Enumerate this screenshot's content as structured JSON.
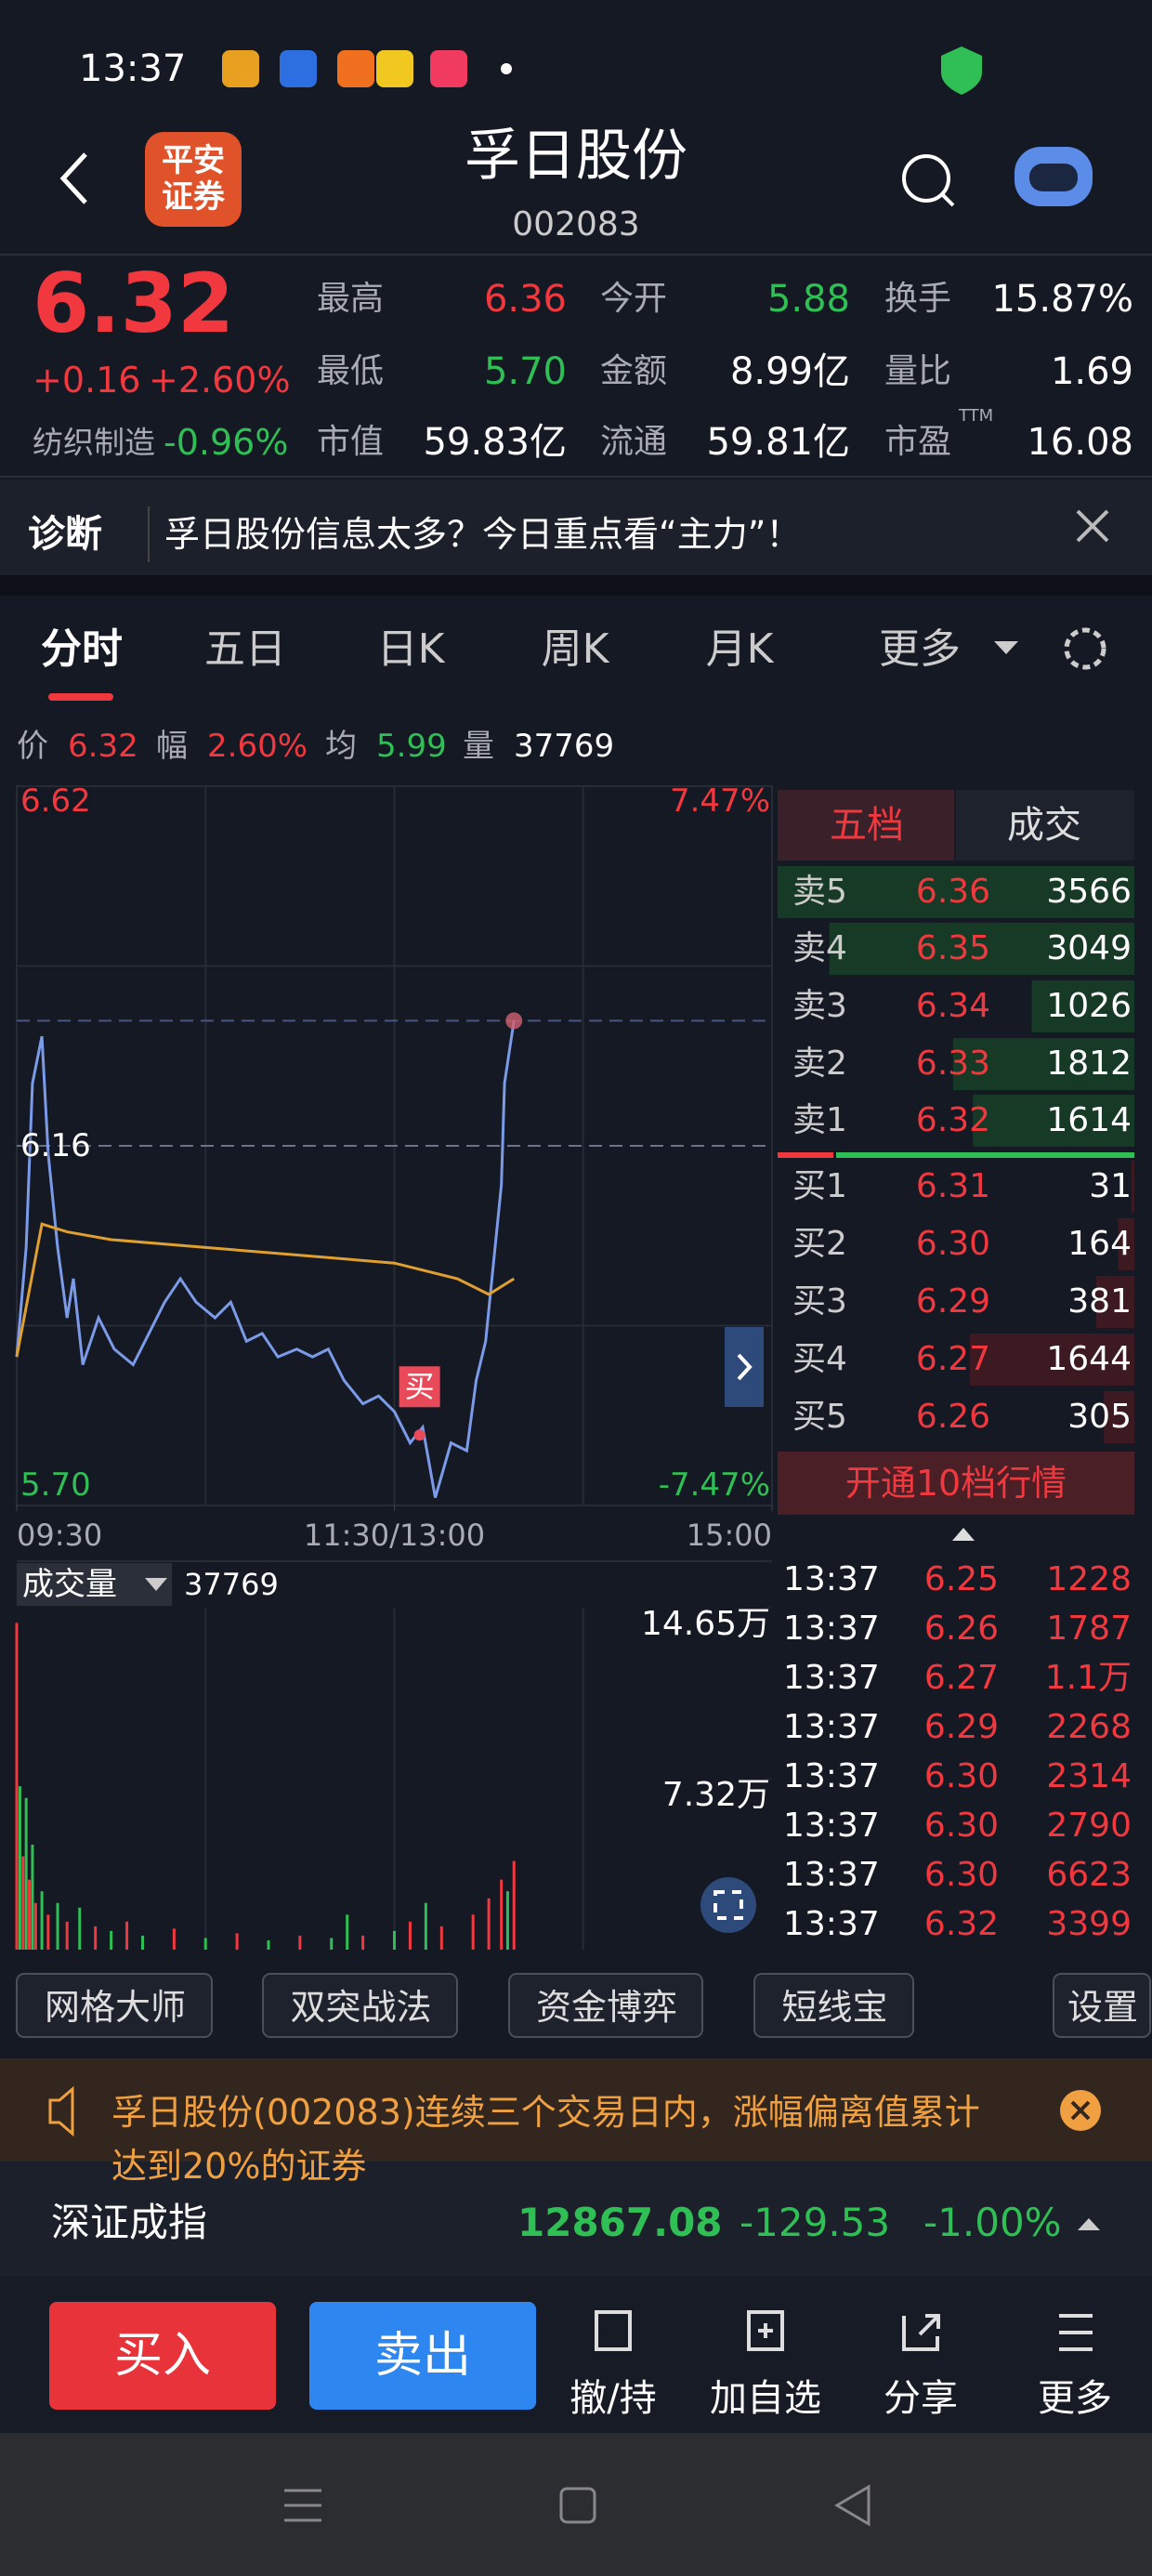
{
  "status_bar": {
    "time": "13:37"
  },
  "header": {
    "broker_logo": "平安证券",
    "title": "孚日股份",
    "code": "002083"
  },
  "quote": {
    "price": "6.32",
    "change": "+0.16",
    "change_pct": "+2.60%",
    "sector": "纺织制造",
    "sector_pct": "-0.96%",
    "stats": [
      {
        "label": "最高",
        "value": "6.36",
        "color": "#f0383e"
      },
      {
        "label": "今开",
        "value": "5.88",
        "color": "#2fbf55"
      },
      {
        "label": "换手",
        "value": "15.87%",
        "color": "#ffffff"
      },
      {
        "label": "最低",
        "value": "5.70",
        "color": "#2fbf55"
      },
      {
        "label": "金额",
        "value": "8.99亿",
        "color": "#ffffff"
      },
      {
        "label": "量比",
        "value": "1.69",
        "color": "#ffffff"
      },
      {
        "label": "市值",
        "value": "59.83亿",
        "color": "#ffffff"
      },
      {
        "label": "流通",
        "value": "59.81亿",
        "color": "#ffffff"
      },
      {
        "label": "市盈",
        "sup": "TTM",
        "value": "16.08",
        "color": "#ffffff"
      }
    ]
  },
  "diagnosis": {
    "label": "诊断",
    "text": "孚日股份信息太多？今日重点看“主力”！"
  },
  "tabs": [
    "分时",
    "五日",
    "日K",
    "周K",
    "月K",
    "更多"
  ],
  "info": [
    {
      "label": "价",
      "value": "6.32",
      "color": "#f0383e"
    },
    {
      "label": "幅",
      "value": "2.60%",
      "color": "#f0383e"
    },
    {
      "label": "均",
      "value": "5.99",
      "color": "#2fbf55"
    },
    {
      "label": "量",
      "value": "37769",
      "color": "#ffffff"
    }
  ],
  "intraday_chart": {
    "type": "line",
    "ylim": [
      5.7,
      6.62
    ],
    "yticks": [
      {
        "value": 5.7,
        "label": "5.70"
      },
      6.16,
      6.62
    ],
    "ygrid": [
      5.93,
      6.39
    ],
    "y2lim": [
      -7.47,
      7.47
    ],
    "y2ticks": [
      {
        "value": -7.47,
        "label": "-7.47%"
      },
      {
        "value": 7.47,
        "label": "7.47%"
      }
    ],
    "xlim": [
      0,
      240
    ],
    "xticks": [
      {
        "value": 0,
        "label": "09:30"
      },
      {
        "value": 120,
        "label": "11:30/13:00"
      },
      {
        "value": 240,
        "label": "15:00"
      }
    ],
    "xgrid": [
      60,
      120,
      180
    ],
    "last_price": 6.32,
    "series": [
      {
        "color": "#7b9be8",
        "x": [
          0,
          3,
          5,
          8,
          10,
          13,
          16,
          18,
          21,
          26,
          31,
          37,
          42,
          47,
          52,
          57,
          63,
          68,
          73,
          78,
          83,
          89,
          94,
          99,
          104,
          110,
          115,
          120,
          125,
          129,
          133,
          138,
          143,
          146,
          149,
          151,
          154,
          155,
          158
        ],
        "values": [
          5.89,
          6.03,
          6.24,
          6.3,
          6.15,
          6.03,
          5.94,
          5.99,
          5.88,
          5.94,
          5.9,
          5.88,
          5.92,
          5.96,
          5.99,
          5.96,
          5.94,
          5.96,
          5.91,
          5.92,
          5.89,
          5.9,
          5.89,
          5.9,
          5.86,
          5.83,
          5.84,
          5.82,
          5.78,
          5.8,
          5.71,
          5.78,
          5.77,
          5.86,
          5.91,
          5.99,
          6.11,
          6.24,
          6.32
        ]
      },
      {
        "color": "#e0a030",
        "x": [
          0,
          8,
          16,
          30,
          60,
          90,
          120,
          140,
          150,
          158
        ],
        "values": [
          5.89,
          6.06,
          6.05,
          6.04,
          6.03,
          6.02,
          6.01,
          5.99,
          5.97,
          5.99
        ]
      }
    ],
    "markers": [
      {
        "label": "买",
        "x": 128,
        "value": 5.79
      }
    ]
  },
  "volume_chart": {
    "type": "bar",
    "title": "成交量",
    "total": "37769",
    "ylim": [
      0,
      146500
    ],
    "yticks": [
      {
        "value": 146500,
        "label": "14.65万"
      },
      {
        "value": 73200,
        "label": "7.32万"
      }
    ],
    "xlim": [
      0,
      240
    ],
    "x": [
      0,
      1,
      2,
      3,
      4,
      5,
      6,
      8,
      10,
      13,
      16,
      20,
      25,
      30,
      35,
      40,
      50,
      60,
      70,
      80,
      90,
      100,
      105,
      110,
      120,
      125,
      130,
      135,
      145,
      150,
      154,
      156,
      158
    ],
    "values": [
      140000,
      70000,
      40000,
      65000,
      30000,
      45000,
      20000,
      25000,
      15000,
      20000,
      12000,
      18000,
      10000,
      8000,
      12000,
      6000,
      9000,
      5000,
      7000,
      4000,
      6000,
      5000,
      15000,
      6000,
      8000,
      12000,
      20000,
      10000,
      15000,
      22000,
      30000,
      25000,
      38000
    ],
    "colors": [
      "#f0383e",
      "#2fbf55",
      "#f0383e",
      "#2fbf55",
      "#f0383e",
      "#2fbf55",
      "#f0383e",
      "#2fbf55",
      "#f0383e",
      "#2fbf55",
      "#f0383e",
      "#2fbf55",
      "#f0383e",
      "#2fbf55",
      "#f0383e",
      "#2fbf55",
      "#f0383e",
      "#2fbf55",
      "#f0383e",
      "#2fbf55",
      "#f0383e",
      "#2fbf55",
      "#2fbf55",
      "#f0383e",
      "#2fbf55",
      "#f0383e",
      "#2fbf55",
      "#f0383e",
      "#f0383e",
      "#f0383e",
      "#f0383e",
      "#2fbf55",
      "#f0383e"
    ]
  },
  "order_book": {
    "tabs": [
      "五档",
      "成交"
    ],
    "asks": [
      {
        "label": "卖5",
        "price": "6.36",
        "volume": 3566
      },
      {
        "label": "卖4",
        "price": "6.35",
        "volume": 3049
      },
      {
        "label": "卖3",
        "price": "6.34",
        "volume": 1026
      },
      {
        "label": "卖2",
        "price": "6.33",
        "volume": 1812
      },
      {
        "label": "卖1",
        "price": "6.32",
        "volume": 1614
      }
    ],
    "bids": [
      {
        "label": "买1",
        "price": "6.31",
        "volume": 31
      },
      {
        "label": "买2",
        "price": "6.30",
        "volume": 164
      },
      {
        "label": "买3",
        "price": "6.29",
        "volume": 381
      },
      {
        "label": "买4",
        "price": "6.27",
        "volume": 1644
      },
      {
        "label": "买5",
        "price": "6.26",
        "volume": 305
      }
    ],
    "upgrade": "开通10档行情"
  },
  "trades": [
    {
      "time": "13:37",
      "price": "6.25",
      "volume": "1228"
    },
    {
      "time": "13:37",
      "price": "6.26",
      "volume": "1787"
    },
    {
      "time": "13:37",
      "price": "6.27",
      "volume": "1.1万"
    },
    {
      "time": "13:37",
      "price": "6.29",
      "volume": "2268"
    },
    {
      "time": "13:37",
      "price": "6.30",
      "volume": "2314"
    },
    {
      "time": "13:37",
      "price": "6.30",
      "volume": "2790"
    },
    {
      "time": "13:37",
      "price": "6.30",
      "volume": "6623"
    },
    {
      "time": "13:37",
      "price": "6.32",
      "volume": "3399"
    }
  ],
  "tools": [
    "网格大师",
    "双突战法",
    "资金博弈",
    "短线宝",
    "设置"
  ],
  "warning": "孚日股份(002083)连续三个交易日内，涨幅偏离值累计达到20%的证券",
  "index": {
    "name": "深证成指",
    "value": "12867.08",
    "change": "-129.53",
    "change_pct": "-1.00%"
  },
  "actions": {
    "buy": "买入",
    "sell": "卖出",
    "icons": [
      "撤/持",
      "加自选",
      "分享",
      "更多"
    ]
  }
}
